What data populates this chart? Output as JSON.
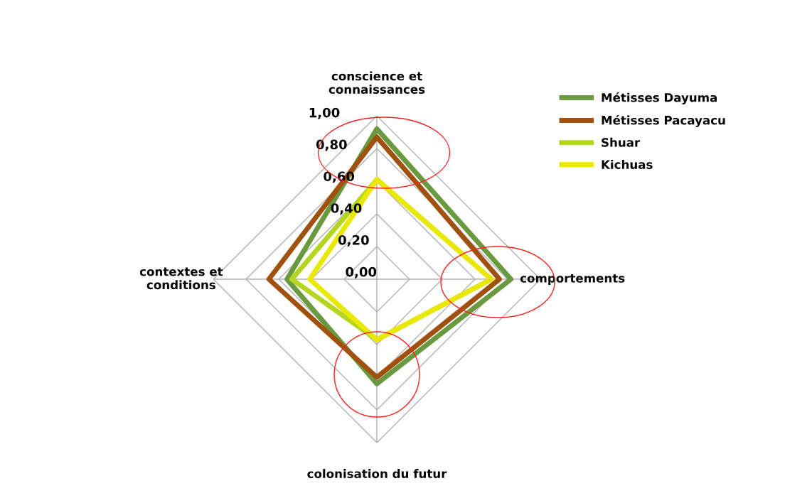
{
  "chart_data": {
    "type": "radar",
    "categories": [
      "conscience et\nconnaissances",
      "comportements",
      "colonisation du futur",
      "contextes et\nconditions"
    ],
    "series": [
      {
        "name": "Métisses Dayuma",
        "color": "#6a9a3f",
        "values": [
          0.92,
          0.82,
          0.64,
          0.55
        ]
      },
      {
        "name": "Métisses Pacayacu",
        "color": "#a0500f",
        "values": [
          0.87,
          0.75,
          0.6,
          0.66
        ]
      },
      {
        "name": "Shuar",
        "color": "#b5d620",
        "values": [
          0.61,
          0.7,
          0.37,
          0.52
        ]
      },
      {
        "name": "Kichuas",
        "color": "#e8e800",
        "values": [
          0.61,
          0.7,
          0.37,
          0.41
        ]
      }
    ],
    "ylim": [
      0,
      1
    ],
    "yticks": [
      {
        "value": 0,
        "label": "0,00"
      },
      {
        "value": 0.2,
        "label": "0,20"
      },
      {
        "value": 0.4,
        "label": "0,40"
      },
      {
        "value": 0.6,
        "label": "0,60"
      },
      {
        "value": 0.8,
        "label": "0,80"
      },
      {
        "value": 1,
        "label": "1,00"
      }
    ],
    "grid": true,
    "legend": "top right",
    "marker": "none",
    "line_style": "solid"
  }
}
